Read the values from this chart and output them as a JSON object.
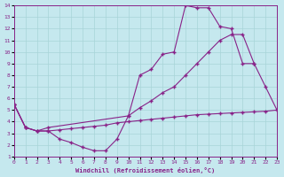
{
  "xlabel": "Windchill (Refroidissement éolien,°C)",
  "xlim": [
    0,
    23
  ],
  "ylim": [
    1,
    14
  ],
  "xticks": [
    0,
    1,
    2,
    3,
    4,
    5,
    6,
    7,
    8,
    9,
    10,
    11,
    12,
    13,
    14,
    15,
    16,
    17,
    18,
    19,
    20,
    21,
    22,
    23
  ],
  "yticks": [
    1,
    2,
    3,
    4,
    5,
    6,
    7,
    8,
    9,
    10,
    11,
    12,
    13,
    14
  ],
  "bg_color": "#c5e8ee",
  "grid_color": "#a8d4d8",
  "line_color": "#882288",
  "curve1_x": [
    0,
    1,
    2,
    3,
    4,
    5,
    6,
    7,
    8,
    9,
    10,
    11,
    12,
    13,
    14,
    15,
    16,
    17,
    18,
    19,
    20,
    21
  ],
  "curve1_y": [
    5.5,
    3.5,
    3.2,
    3.2,
    2.5,
    2.2,
    1.8,
    1.5,
    1.5,
    2.5,
    4.5,
    8.0,
    8.5,
    9.8,
    10.0,
    14.0,
    13.8,
    13.8,
    12.2,
    12.0,
    9.0,
    9.0
  ],
  "curve2_x": [
    0,
    1,
    2,
    3,
    10,
    11,
    12,
    13,
    14,
    15,
    16,
    17,
    18,
    19,
    20,
    21,
    22,
    23
  ],
  "curve2_y": [
    5.5,
    3.5,
    3.2,
    3.5,
    4.5,
    5.2,
    5.8,
    6.5,
    7.0,
    8.0,
    9.0,
    10.0,
    11.0,
    11.5,
    11.5,
    9.0,
    7.0,
    5.0
  ],
  "curve3_x": [
    0,
    1,
    2,
    3,
    4,
    5,
    6,
    7,
    8,
    9,
    10,
    11,
    12,
    13,
    14,
    15,
    16,
    17,
    18,
    19,
    20,
    21,
    22,
    23
  ],
  "curve3_y": [
    5.5,
    3.5,
    3.2,
    3.2,
    3.3,
    3.4,
    3.5,
    3.6,
    3.7,
    3.9,
    4.0,
    4.1,
    4.2,
    4.3,
    4.4,
    4.5,
    4.6,
    4.65,
    4.7,
    4.75,
    4.8,
    4.85,
    4.9,
    5.0
  ]
}
